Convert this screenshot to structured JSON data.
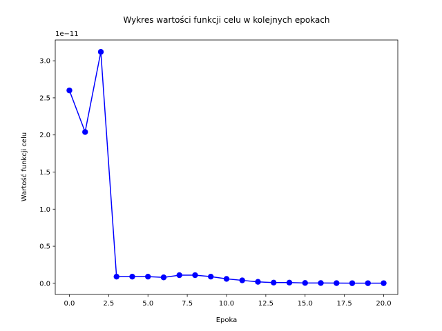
{
  "chart_data": {
    "type": "line",
    "title": "Wykres wartości funkcji celu w kolejnych epokach",
    "xlabel": "Epoka",
    "ylabel": "Wartość funkcji celu",
    "y_offset_label": "1e−11",
    "y_scale_exponent": -11,
    "xlim": [
      -0.9,
      20.9
    ],
    "ylim": [
      -0.15,
      3.28
    ],
    "x_ticks": [
      0,
      2.5,
      5,
      7.5,
      10,
      12.5,
      15,
      17.5,
      20
    ],
    "x_tick_labels": [
      "0.0",
      "2.5",
      "5.0",
      "7.5",
      "10.0",
      "12.5",
      "15.0",
      "17.5",
      "20.0"
    ],
    "y_ticks": [
      0,
      0.5,
      1,
      1.5,
      2,
      2.5,
      3
    ],
    "y_tick_labels": [
      "0.0",
      "0.5",
      "1.0",
      "1.5",
      "2.0",
      "2.5",
      "3.0"
    ],
    "grid": false,
    "series": [
      {
        "color": "#0000ff",
        "marker": "circle",
        "x": [
          0,
          1,
          2,
          3,
          4,
          5,
          6,
          7,
          8,
          9,
          10,
          11,
          12,
          13,
          14,
          15,
          16,
          17,
          18,
          19,
          20
        ],
        "y": [
          2.6,
          2.04,
          3.12,
          0.09,
          0.09,
          0.09,
          0.08,
          0.11,
          0.11,
          0.09,
          0.06,
          0.04,
          0.02,
          0.01,
          0.01,
          0.005,
          0.004,
          0.003,
          0.002,
          0.002,
          0.002
        ]
      }
    ]
  }
}
